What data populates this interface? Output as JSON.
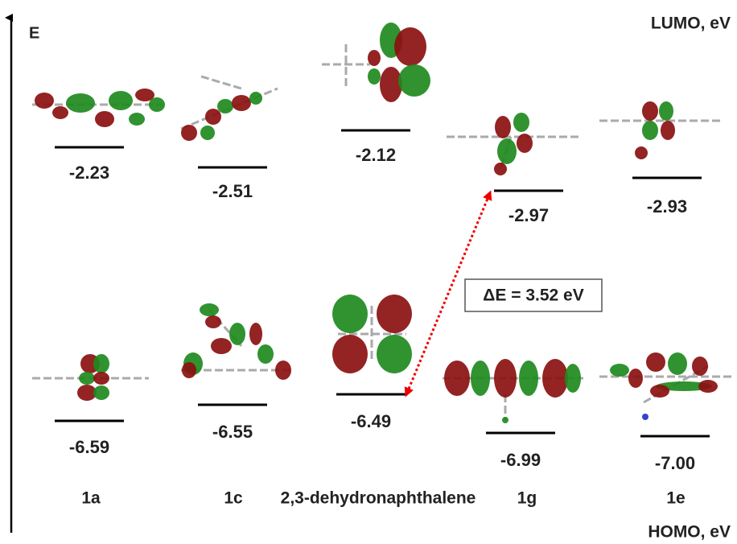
{
  "axis_label": "E",
  "lumo_label": "LUMO, eV",
  "homo_label": "HOMO, eV",
  "molecules": [
    {
      "name": "1a",
      "lumo": "-2.23",
      "homo": "-6.59"
    },
    {
      "name": "1c",
      "lumo": "-2.51",
      "homo": "-6.55"
    },
    {
      "name": "2,3-dehydronaphthalene",
      "lumo": "-2.12",
      "homo": "-6.49"
    },
    {
      "name": "1g",
      "lumo": "-2.97",
      "homo": "-6.99"
    },
    {
      "name": "1e",
      "lumo": "-2.93",
      "homo": "-7.00"
    }
  ],
  "gap_label": "ΔE = 3.52 eV"
}
